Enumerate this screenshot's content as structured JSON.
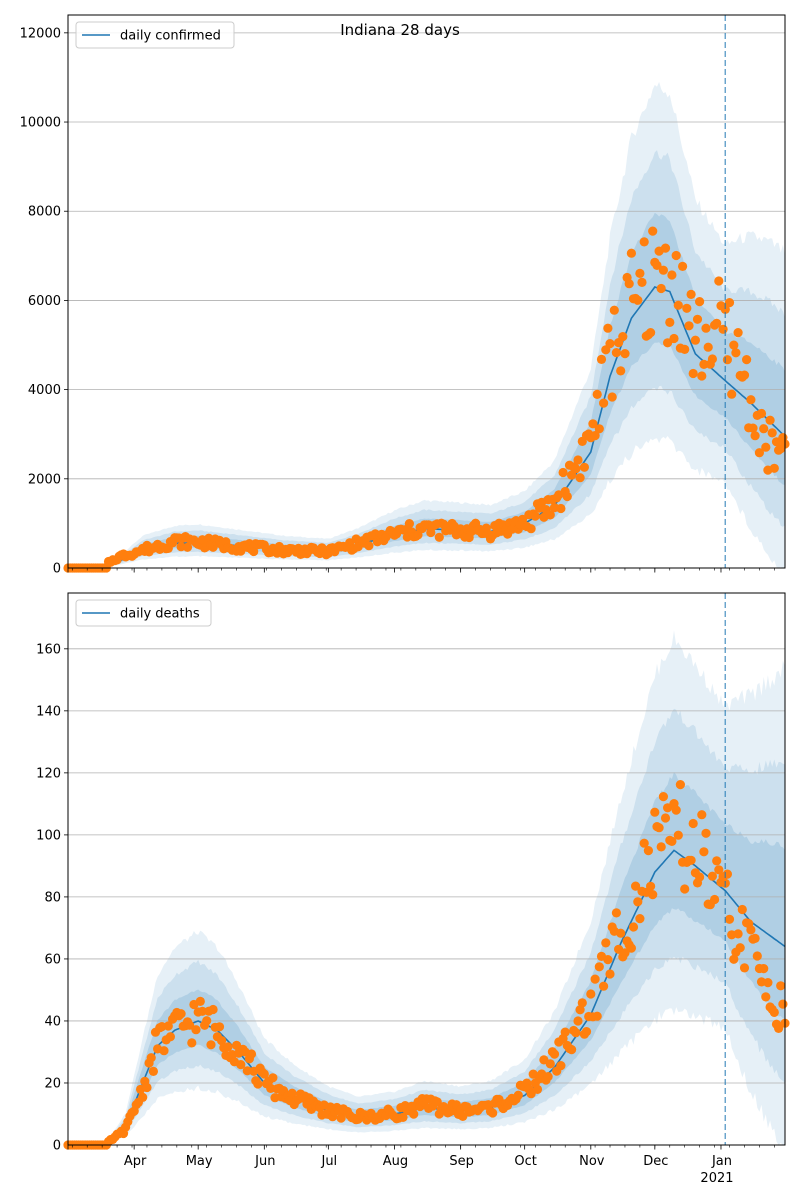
{
  "figure": {
    "title": "Indiana 28 days"
  },
  "colors": {
    "line": "#1f77b4",
    "points": "#ff7f0e",
    "band": "#1f77b4",
    "grid": "#b0b0b0",
    "vline": "#1f77b4"
  },
  "x_axis": {
    "months": [
      "Apr",
      "May",
      "Jun",
      "Jul",
      "Aug",
      "Sep",
      "Oct",
      "Nov",
      "Dec",
      "Jan"
    ],
    "year_label": "2021",
    "range": [
      "2020-03-01",
      "2021-01-31"
    ]
  },
  "chart_data": [
    {
      "type": "line",
      "legend": "daily confirmed",
      "legend_position": "upper-left",
      "ylim": [
        0,
        12400
      ],
      "yticks": [
        0,
        2000,
        4000,
        6000,
        8000,
        10000,
        12000
      ],
      "grid": "horizontal",
      "forecast_start": "2021-01-03",
      "model_keypoints": [
        [
          "2020-03-01",
          0
        ],
        [
          "2020-03-15",
          10
        ],
        [
          "2020-03-25",
          150
        ],
        [
          "2020-04-05",
          420
        ],
        [
          "2020-04-20",
          550
        ],
        [
          "2020-05-01",
          570
        ],
        [
          "2020-05-20",
          500
        ],
        [
          "2020-06-10",
          420
        ],
        [
          "2020-07-01",
          380
        ],
        [
          "2020-07-15",
          520
        ],
        [
          "2020-08-01",
          750
        ],
        [
          "2020-08-15",
          880
        ],
        [
          "2020-09-01",
          850
        ],
        [
          "2020-09-15",
          820
        ],
        [
          "2020-10-01",
          1000
        ],
        [
          "2020-10-15",
          1400
        ],
        [
          "2020-11-01",
          2600
        ],
        [
          "2020-11-10",
          4300
        ],
        [
          "2020-11-20",
          5600
        ],
        [
          "2020-12-01",
          6300
        ],
        [
          "2020-12-08",
          6200
        ],
        [
          "2020-12-20",
          4800
        ],
        [
          "2021-01-03",
          4200
        ],
        [
          "2021-01-15",
          3700
        ],
        [
          "2021-01-31",
          2950
        ]
      ],
      "observed_points": [
        [
          "2020-03-20",
          120
        ],
        [
          "2020-03-25",
          250
        ],
        [
          "2020-04-05",
          400
        ],
        [
          "2020-04-20",
          600
        ],
        [
          "2020-05-01",
          580
        ],
        [
          "2020-05-20",
          480
        ],
        [
          "2020-06-10",
          400
        ],
        [
          "2020-07-01",
          370
        ],
        [
          "2020-07-15",
          550
        ],
        [
          "2020-08-01",
          760
        ],
        [
          "2020-08-15",
          880
        ],
        [
          "2020-09-01",
          840
        ],
        [
          "2020-09-15",
          830
        ],
        [
          "2020-10-01",
          1000
        ],
        [
          "2020-10-15",
          1450
        ],
        [
          "2020-11-01",
          2900
        ],
        [
          "2020-11-10",
          4700
        ],
        [
          "2020-11-20",
          5800
        ],
        [
          "2020-12-01",
          6500
        ],
        [
          "2020-12-10",
          6400
        ],
        [
          "2020-12-20",
          5000
        ],
        [
          "2021-01-01",
          5300
        ],
        [
          "2021-01-10",
          4600
        ],
        [
          "2021-01-20",
          2900
        ],
        [
          "2021-01-31",
          2400
        ]
      ]
    },
    {
      "type": "line",
      "legend": "daily deaths",
      "legend_position": "upper-left",
      "ylim": [
        0,
        178
      ],
      "yticks": [
        0,
        20,
        40,
        60,
        80,
        100,
        120,
        140,
        160
      ],
      "grid": "horizontal",
      "forecast_start": "2021-01-03",
      "model_keypoints": [
        [
          "2020-03-01",
          0
        ],
        [
          "2020-03-20",
          1
        ],
        [
          "2020-03-28",
          6
        ],
        [
          "2020-04-05",
          20
        ],
        [
          "2020-04-12",
          32
        ],
        [
          "2020-04-20",
          37
        ],
        [
          "2020-05-01",
          40
        ],
        [
          "2020-05-10",
          37
        ],
        [
          "2020-05-20",
          30
        ],
        [
          "2020-06-01",
          20
        ],
        [
          "2020-06-15",
          15
        ],
        [
          "2020-07-01",
          11
        ],
        [
          "2020-07-15",
          9
        ],
        [
          "2020-08-01",
          10
        ],
        [
          "2020-08-15",
          12
        ],
        [
          "2020-09-01",
          11
        ],
        [
          "2020-09-15",
          12
        ],
        [
          "2020-10-01",
          16
        ],
        [
          "2020-10-15",
          25
        ],
        [
          "2020-11-01",
          42
        ],
        [
          "2020-11-15",
          65
        ],
        [
          "2020-12-01",
          88
        ],
        [
          "2020-12-10",
          95
        ],
        [
          "2020-12-20",
          90
        ],
        [
          "2021-01-03",
          82
        ],
        [
          "2021-01-15",
          72
        ],
        [
          "2021-01-31",
          64
        ]
      ],
      "observed_points": [
        [
          "2020-03-20",
          1
        ],
        [
          "2020-03-28",
          5
        ],
        [
          "2020-04-05",
          18
        ],
        [
          "2020-04-12",
          33
        ],
        [
          "2020-04-20",
          37
        ],
        [
          "2020-05-01",
          41
        ],
        [
          "2020-05-10",
          37
        ],
        [
          "2020-05-20",
          31
        ],
        [
          "2020-06-01",
          20
        ],
        [
          "2020-06-15",
          15
        ],
        [
          "2020-07-01",
          11
        ],
        [
          "2020-07-15",
          9
        ],
        [
          "2020-08-01",
          10
        ],
        [
          "2020-08-15",
          13
        ],
        [
          "2020-09-01",
          11
        ],
        [
          "2020-09-15",
          12
        ],
        [
          "2020-10-01",
          17
        ],
        [
          "2020-10-15",
          27
        ],
        [
          "2020-11-01",
          44
        ],
        [
          "2020-11-15",
          70
        ],
        [
          "2020-12-01",
          92
        ],
        [
          "2020-12-10",
          100
        ],
        [
          "2020-12-20",
          95
        ],
        [
          "2021-01-01",
          78
        ],
        [
          "2021-01-10",
          68
        ],
        [
          "2021-01-20",
          55
        ],
        [
          "2021-01-31",
          42
        ]
      ]
    }
  ]
}
